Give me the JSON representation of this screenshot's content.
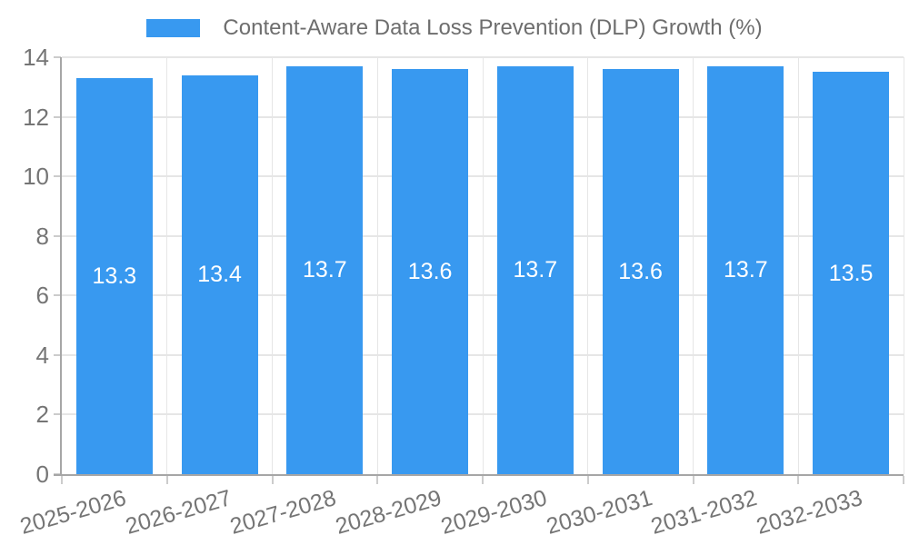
{
  "chart_data": {
    "type": "bar",
    "title": "",
    "legend_label": "Content-Aware Data Loss Prevention (DLP) Growth (%)",
    "legend_position": "top",
    "categories": [
      "2025-2026",
      "2026-2027",
      "2027-2028",
      "2028-2029",
      "2029-2030",
      "2030-2031",
      "2031-2032",
      "2032-2033"
    ],
    "values": [
      13.3,
      13.4,
      13.7,
      13.6,
      13.7,
      13.6,
      13.7,
      13.5
    ],
    "value_labels": [
      "13.3",
      "13.4",
      "13.7",
      "13.6",
      "13.7",
      "13.6",
      "13.7",
      "13.5"
    ],
    "xlabel": "",
    "ylabel": "",
    "ylim": [
      0,
      14
    ],
    "yticks": [
      0,
      2,
      4,
      6,
      8,
      10,
      12,
      14
    ],
    "grid": true,
    "x_tick_rotation_deg": -16,
    "colors": {
      "bar": "#3899f0",
      "bar_label_text": "#ffffff",
      "tick_text": "#757575",
      "legend_text": "#6e6e6e",
      "grid": "#e6e6e6",
      "tick_mark": "#cccccc",
      "axis": "#a6a6a6",
      "background": "#ffffff"
    }
  }
}
